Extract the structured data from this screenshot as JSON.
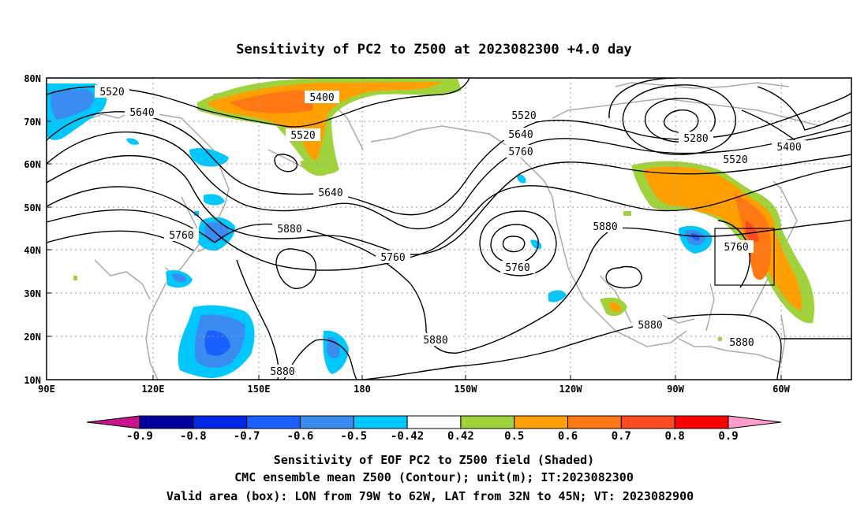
{
  "title": "Sensitivity of PC2 to Z500 at 2023082300 +4.0 day",
  "map": {
    "lat_ticks": [
      "80N",
      "70N",
      "60N",
      "50N",
      "40N",
      "30N",
      "20N",
      "10N"
    ],
    "lon_ticks": [
      "90E",
      "120E",
      "150E",
      "180",
      "150W",
      "120W",
      "90W",
      "60W"
    ],
    "contour_labels": [
      {
        "text": "5520"
      },
      {
        "text": "5640"
      },
      {
        "text": "5400"
      },
      {
        "text": "5520"
      },
      {
        "text": "5640"
      },
      {
        "text": "5760"
      },
      {
        "text": "5880"
      },
      {
        "text": "5760"
      },
      {
        "text": "5880"
      },
      {
        "text": "5880"
      },
      {
        "text": "5520"
      },
      {
        "text": "5640"
      },
      {
        "text": "5760"
      },
      {
        "text": "5760"
      },
      {
        "text": "5880"
      },
      {
        "text": "5280"
      },
      {
        "text": "5400"
      },
      {
        "text": "5520"
      },
      {
        "text": "5760"
      },
      {
        "text": "5880"
      },
      {
        "text": "5880"
      }
    ],
    "valid_box": {
      "lon_west": "79W",
      "lon_east": "62W",
      "lat_south": "32N",
      "lat_north": "45N"
    }
  },
  "colorbar": {
    "labels": [
      "-0.9",
      "-0.8",
      "-0.7",
      "-0.6",
      "-0.5",
      "-0.42",
      "0.42",
      "0.5",
      "0.6",
      "0.7",
      "0.8",
      "0.9"
    ],
    "colors": [
      "#0000a0",
      "#0028e6",
      "#1a60ff",
      "#3a8cf0",
      "#00c8ff",
      "#ffffff",
      "#a0d23c",
      "#ffa000",
      "#ff7814",
      "#ff4a1e",
      "#ff0000"
    ],
    "low_extend_color": "#c8148c",
    "high_extend_color": "#ff9ec8"
  },
  "caption": [
    "Sensitivity of EOF PC2 to Z500 field (Shaded)",
    "CMC ensemble mean Z500 (Contour); unit(m); IT:2023082300",
    "Valid area (box): LON from 79W to 62W, LAT from 32N to 45N; VT: 2023082900"
  ]
}
